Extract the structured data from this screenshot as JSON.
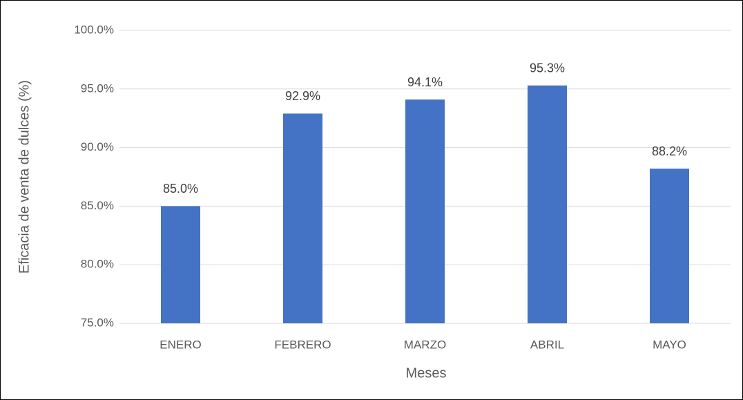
{
  "chart_data": {
    "type": "bar",
    "categories": [
      "ENERO",
      "FEBRERO",
      "MARZO",
      "ABRIL",
      "MAYO"
    ],
    "values": [
      85.0,
      92.9,
      94.1,
      95.3,
      88.2
    ],
    "value_labels": [
      "85.0%",
      "92.9%",
      "94.1%",
      "95.3%",
      "88.2%"
    ],
    "color": "#4472c4",
    "x_label": "Meses",
    "y_label": "Eficacia de venta de dulces (%)",
    "ylim": [
      75,
      100
    ],
    "yticks": [
      {
        "value": 75,
        "label": "75.0%"
      },
      {
        "value": 80,
        "label": "80.0%"
      },
      {
        "value": 85,
        "label": "85.0%"
      },
      {
        "value": 90,
        "label": "90.0%"
      },
      {
        "value": 95,
        "label": "95.0%"
      },
      {
        "value": 100,
        "label": "100.0%"
      }
    ],
    "grid": true
  }
}
